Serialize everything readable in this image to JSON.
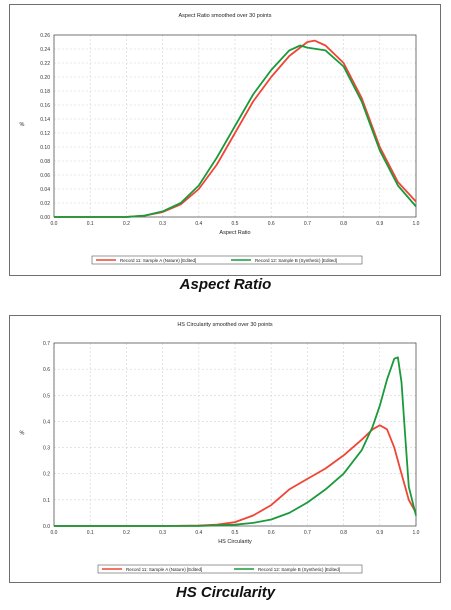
{
  "captions": [
    "Aspect Ratio",
    "HS Circularity"
  ],
  "colors": {
    "series_a": "#f04535",
    "series_b": "#1a9a3a",
    "grid": "#d4d4d4",
    "axis": "#555555"
  },
  "chart_data": [
    {
      "type": "line",
      "title": "Aspect Ratio smoothed over 30 points",
      "xlabel": "Aspect Ratio",
      "ylabel": "%",
      "xlim": [
        0,
        1
      ],
      "ylim": [
        0,
        0.26
      ],
      "xticks": [
        0,
        0.1,
        0.2,
        0.3,
        0.4,
        0.5,
        0.6,
        0.7,
        0.8,
        0.9,
        1
      ],
      "xtick_labels": [
        "0.0",
        "0.1",
        "0.2",
        "0.3",
        "0.4",
        "0.5",
        "0.6",
        "0.7",
        "0.8",
        "0.9",
        "1.0"
      ],
      "yticks": [
        0,
        0.02,
        0.04,
        0.06,
        0.08,
        0.1,
        0.12,
        0.14,
        0.16,
        0.18,
        0.2,
        0.22,
        0.24,
        0.26
      ],
      "ytick_labels": [
        "0.00",
        "0.02",
        "0.04",
        "0.06",
        "0.08",
        "0.10",
        "0.12",
        "0.14",
        "0.16",
        "0.18",
        "0.20",
        "0.22",
        "0.24",
        "0.26"
      ],
      "grid": true,
      "legend_position": "bottom",
      "series": [
        {
          "name": "Record 11: Sample A (Nature) [Edited]",
          "color": "#f04535",
          "x": [
            0,
            0.2,
            0.25,
            0.3,
            0.35,
            0.4,
            0.45,
            0.5,
            0.55,
            0.6,
            0.65,
            0.7,
            0.72,
            0.75,
            0.8,
            0.85,
            0.9,
            0.95,
            1.0
          ],
          "y": [
            0,
            0,
            0.002,
            0.007,
            0.018,
            0.04,
            0.075,
            0.12,
            0.165,
            0.2,
            0.23,
            0.25,
            0.252,
            0.245,
            0.22,
            0.17,
            0.1,
            0.05,
            0.022
          ]
        },
        {
          "name": "Record 12: Sample B (Synthetic) [Edited]",
          "color": "#1a9a3a",
          "x": [
            0,
            0.2,
            0.25,
            0.3,
            0.35,
            0.4,
            0.45,
            0.5,
            0.55,
            0.6,
            0.65,
            0.68,
            0.7,
            0.75,
            0.8,
            0.85,
            0.9,
            0.95,
            1.0
          ],
          "y": [
            0,
            0,
            0.002,
            0.008,
            0.02,
            0.045,
            0.085,
            0.13,
            0.175,
            0.21,
            0.238,
            0.245,
            0.242,
            0.238,
            0.215,
            0.165,
            0.095,
            0.045,
            0.015
          ]
        }
      ]
    },
    {
      "type": "line",
      "title": "HS Circularity smoothed over 30 points",
      "xlabel": "HS Circularity",
      "ylabel": "%",
      "xlim": [
        0,
        1
      ],
      "ylim": [
        0,
        0.7
      ],
      "xticks": [
        0,
        0.1,
        0.2,
        0.3,
        0.4,
        0.5,
        0.6,
        0.7,
        0.8,
        0.9,
        1
      ],
      "xtick_labels": [
        "0.0",
        "0.1",
        "0.2",
        "0.3",
        "0.4",
        "0.5",
        "0.6",
        "0.7",
        "0.8",
        "0.9",
        "1.0"
      ],
      "yticks": [
        0,
        0.1,
        0.2,
        0.3,
        0.4,
        0.5,
        0.6,
        0.7
      ],
      "ytick_labels": [
        "0.0",
        "0.1",
        "0.2",
        "0.3",
        "0.4",
        "0.5",
        "0.6",
        "0.7"
      ],
      "grid": true,
      "legend_position": "bottom",
      "series": [
        {
          "name": "Record 11: Sample A (Nature) [Edited]",
          "color": "#f04535",
          "x": [
            0,
            0.3,
            0.4,
            0.45,
            0.5,
            0.55,
            0.6,
            0.65,
            0.7,
            0.75,
            0.8,
            0.85,
            0.88,
            0.9,
            0.92,
            0.94,
            0.96,
            0.98,
            1.0
          ],
          "y": [
            0,
            0,
            0.002,
            0.005,
            0.015,
            0.04,
            0.08,
            0.14,
            0.18,
            0.22,
            0.27,
            0.33,
            0.37,
            0.385,
            0.37,
            0.3,
            0.2,
            0.1,
            0.05
          ]
        },
        {
          "name": "Record 12: Sample B (Synthetic) [Edited]",
          "color": "#1a9a3a",
          "x": [
            0,
            0.4,
            0.5,
            0.55,
            0.6,
            0.65,
            0.7,
            0.75,
            0.8,
            0.85,
            0.88,
            0.9,
            0.92,
            0.94,
            0.95,
            0.96,
            0.97,
            0.98,
            1.0
          ],
          "y": [
            0,
            0,
            0.005,
            0.012,
            0.025,
            0.05,
            0.09,
            0.14,
            0.2,
            0.29,
            0.38,
            0.46,
            0.56,
            0.64,
            0.645,
            0.55,
            0.35,
            0.15,
            0.04
          ]
        }
      ]
    }
  ]
}
